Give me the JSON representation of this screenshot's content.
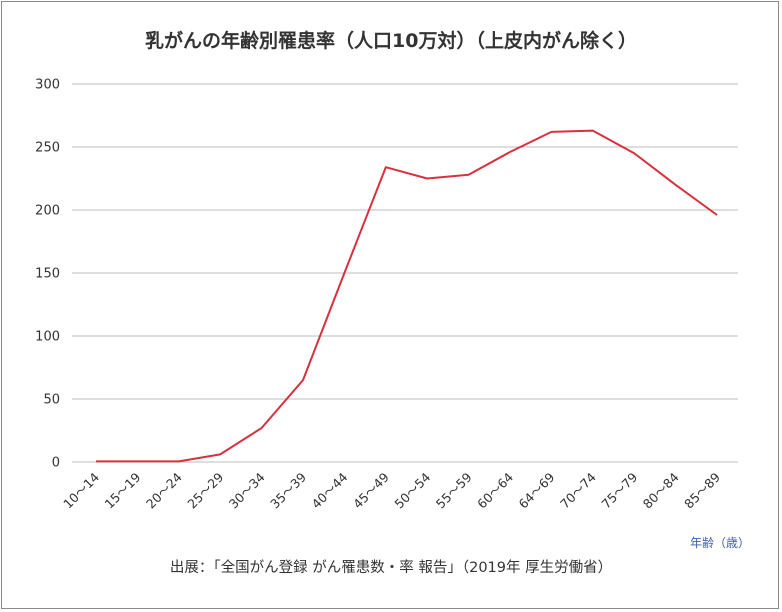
{
  "title": "乳がんの年齢別罹患率（人口10万対）（上皮内がん除く）",
  "x_unit_label": "年齢（歳）",
  "source": "出展：「全国がん登録 がん罹患数・率 報告」（2019年 厚生労働省）",
  "colors": {
    "line": "#d9303e",
    "grid": "#bdbdbd",
    "axis_text": "#333333",
    "unit_text": "#3a5ea8"
  },
  "chart_data": {
    "type": "line",
    "categories": [
      "10～14",
      "15～19",
      "20～24",
      "25～29",
      "30～34",
      "35～39",
      "40～44",
      "45～49",
      "50～54",
      "55～59",
      "60～64",
      "64～69",
      "70～74",
      "75～79",
      "80～84",
      "85～89"
    ],
    "series": [
      {
        "values": [
          0.5,
          0.5,
          0.5,
          6,
          27,
          65,
          150,
          234,
          225,
          228,
          246,
          262,
          263,
          245,
          220,
          196
        ]
      }
    ],
    "yticks": [
      0,
      50,
      100,
      150,
      200,
      250,
      300
    ],
    "ylim": [
      0,
      300
    ],
    "grid": true,
    "xlabel": "年齢（歳）",
    "ylabel": ""
  }
}
